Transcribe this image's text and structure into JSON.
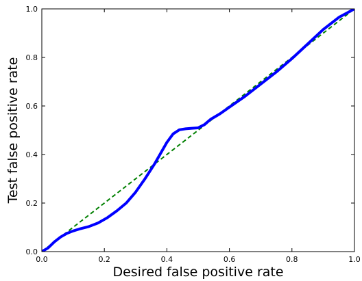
{
  "chart_data": {
    "type": "line",
    "title": "",
    "xlabel": "Desired false positive rate",
    "ylabel": "Test false positive rate",
    "xlim": [
      0.0,
      1.0
    ],
    "ylim": [
      0.0,
      1.0
    ],
    "xticks": [
      "0.0",
      "0.2",
      "0.4",
      "0.6",
      "0.8",
      "1.0"
    ],
    "yticks": [
      "0.0",
      "0.2",
      "0.4",
      "0.6",
      "0.8",
      "1.0"
    ],
    "grid": false,
    "legend": "none",
    "series": [
      {
        "color": "#0000ff",
        "style": "solid",
        "x": [
          0.0,
          0.02,
          0.04,
          0.06,
          0.08,
          0.1,
          0.12,
          0.15,
          0.18,
          0.21,
          0.24,
          0.27,
          0.3,
          0.33,
          0.36,
          0.38,
          0.4,
          0.42,
          0.44,
          0.46,
          0.48,
          0.5,
          0.52,
          0.54,
          0.57,
          0.6,
          0.65,
          0.7,
          0.75,
          0.8,
          0.85,
          0.9,
          0.95,
          1.0
        ],
        "y": [
          0.0,
          0.015,
          0.04,
          0.06,
          0.075,
          0.085,
          0.093,
          0.103,
          0.118,
          0.14,
          0.168,
          0.2,
          0.245,
          0.3,
          0.36,
          0.405,
          0.45,
          0.485,
          0.502,
          0.506,
          0.508,
          0.51,
          0.523,
          0.545,
          0.568,
          0.595,
          0.64,
          0.69,
          0.74,
          0.795,
          0.855,
          0.915,
          0.965,
          1.0
        ]
      },
      {
        "color": "#008000",
        "style": "dashed",
        "x": [
          0.0,
          1.0
        ],
        "y": [
          0.0,
          1.0
        ]
      }
    ]
  }
}
